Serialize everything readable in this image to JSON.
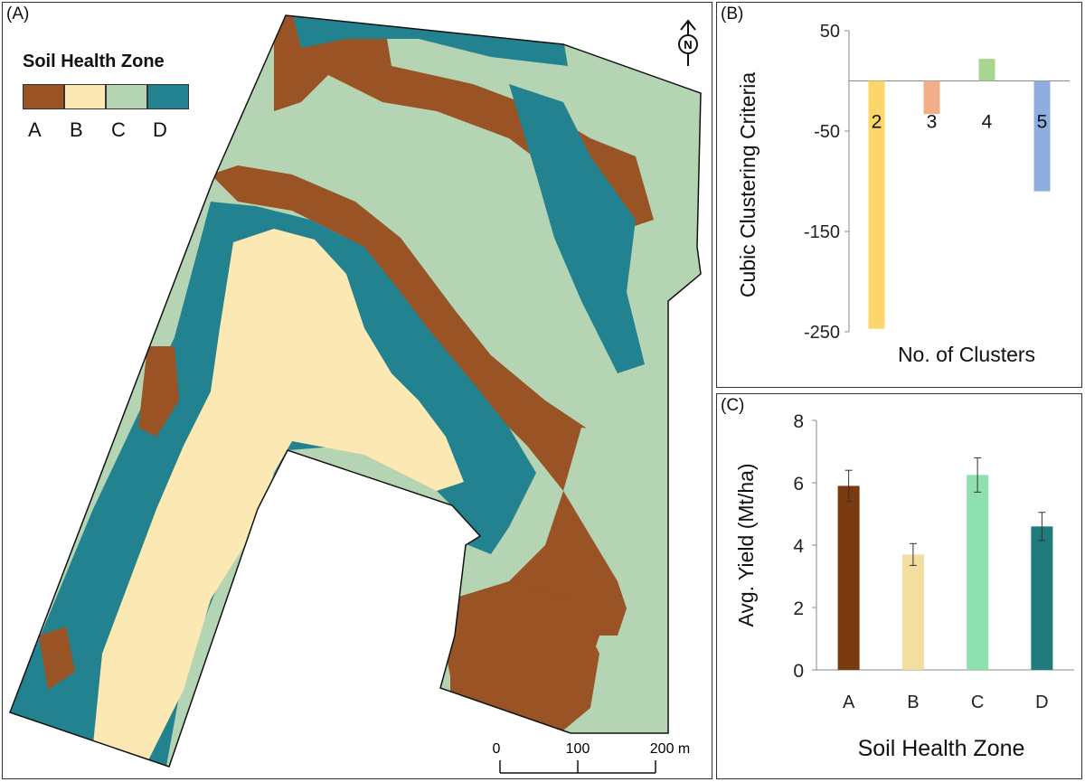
{
  "panel_a": {
    "label": "(A)",
    "legend_title": "Soil Health Zone",
    "legend": [
      {
        "zone": "A",
        "color": "#9a5324"
      },
      {
        "zone": "B",
        "color": "#fce8b2"
      },
      {
        "zone": "C",
        "color": "#b5d4b3"
      },
      {
        "zone": "D",
        "color": "#23828f"
      }
    ],
    "north_label": "N",
    "scale_labels": [
      "0",
      "100",
      "200 m"
    ]
  },
  "panel_b": {
    "label": "(B)",
    "chart_data": {
      "type": "bar",
      "categories": [
        "2",
        "3",
        "4",
        "5"
      ],
      "values": [
        -247,
        -33,
        22,
        -110
      ],
      "colors": [
        "#fcd66a",
        "#f3ad87",
        "#a8d68e",
        "#8faddf"
      ],
      "ylabel": "Cubic Clustering Criteria",
      "xlabel": "No. of Clusters",
      "ylim": [
        -250,
        50
      ],
      "yticks": [
        50,
        -50,
        -150,
        -250
      ]
    }
  },
  "panel_c": {
    "label": "(C)",
    "chart_data": {
      "type": "bar",
      "categories": [
        "A",
        "B",
        "C",
        "D"
      ],
      "values": [
        5.9,
        3.7,
        6.25,
        4.6
      ],
      "errors": [
        0.5,
        0.35,
        0.55,
        0.45
      ],
      "colors": [
        "#7a3a10",
        "#f3dea0",
        "#8fe0b0",
        "#207c7c"
      ],
      "ylabel": "Avg. Yield (Mt/ha)",
      "xlabel": "Soil Health Zone",
      "ylim": [
        0,
        8
      ],
      "yticks": [
        0,
        2,
        4,
        6,
        8
      ]
    }
  }
}
